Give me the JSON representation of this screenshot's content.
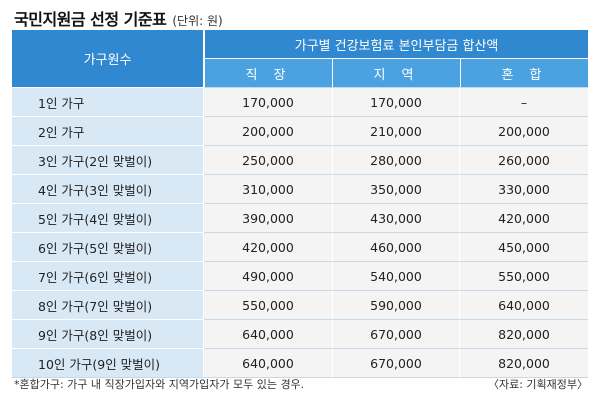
{
  "header": {
    "title": "국민지원금 선정 기준표",
    "unit": "(단위: 원)"
  },
  "table": {
    "col_household": "가구원수",
    "group_header": "가구별 건강보험료 본인부담금 합산액",
    "sub_headers": [
      "직 장",
      "지 역",
      "혼 합"
    ],
    "rows": [
      {
        "label": "1인 가구",
        "values": [
          "170,000",
          "170,000",
          "–"
        ]
      },
      {
        "label": "2인 가구",
        "values": [
          "200,000",
          "210,000",
          "200,000"
        ]
      },
      {
        "label": "3인 가구(2인 맞벌이)",
        "values": [
          "250,000",
          "280,000",
          "260,000"
        ]
      },
      {
        "label": "4인 가구(3인 맞벌이)",
        "values": [
          "310,000",
          "350,000",
          "330,000"
        ]
      },
      {
        "label": "5인 가구(4인 맞벌이)",
        "values": [
          "390,000",
          "430,000",
          "420,000"
        ]
      },
      {
        "label": "6인 가구(5인 맞벌이)",
        "values": [
          "420,000",
          "460,000",
          "450,000"
        ]
      },
      {
        "label": "7인 가구(6인 맞벌이)",
        "values": [
          "490,000",
          "540,000",
          "550,000"
        ]
      },
      {
        "label": "8인 가구(7인 맞벌이)",
        "values": [
          "550,000",
          "590,000",
          "640,000"
        ]
      },
      {
        "label": "9인 가구(8인 맞벌이)",
        "values": [
          "640,000",
          "670,000",
          "820,000"
        ]
      },
      {
        "label": "10인 가구(9인 맞벌이)",
        "values": [
          "640,000",
          "670,000",
          "820,000"
        ]
      }
    ]
  },
  "footer": {
    "note": "*혼합가구: 가구 내 직장가입자와 지역가입자가 모두 있는 경우.",
    "source": "〈자료: 기획재정부〉"
  },
  "colors": {
    "header_dark": "#2f88d0",
    "header_light": "#4aa3e0",
    "category_bg": "#d8e8f5",
    "value_bg": "#f4f4f4"
  }
}
